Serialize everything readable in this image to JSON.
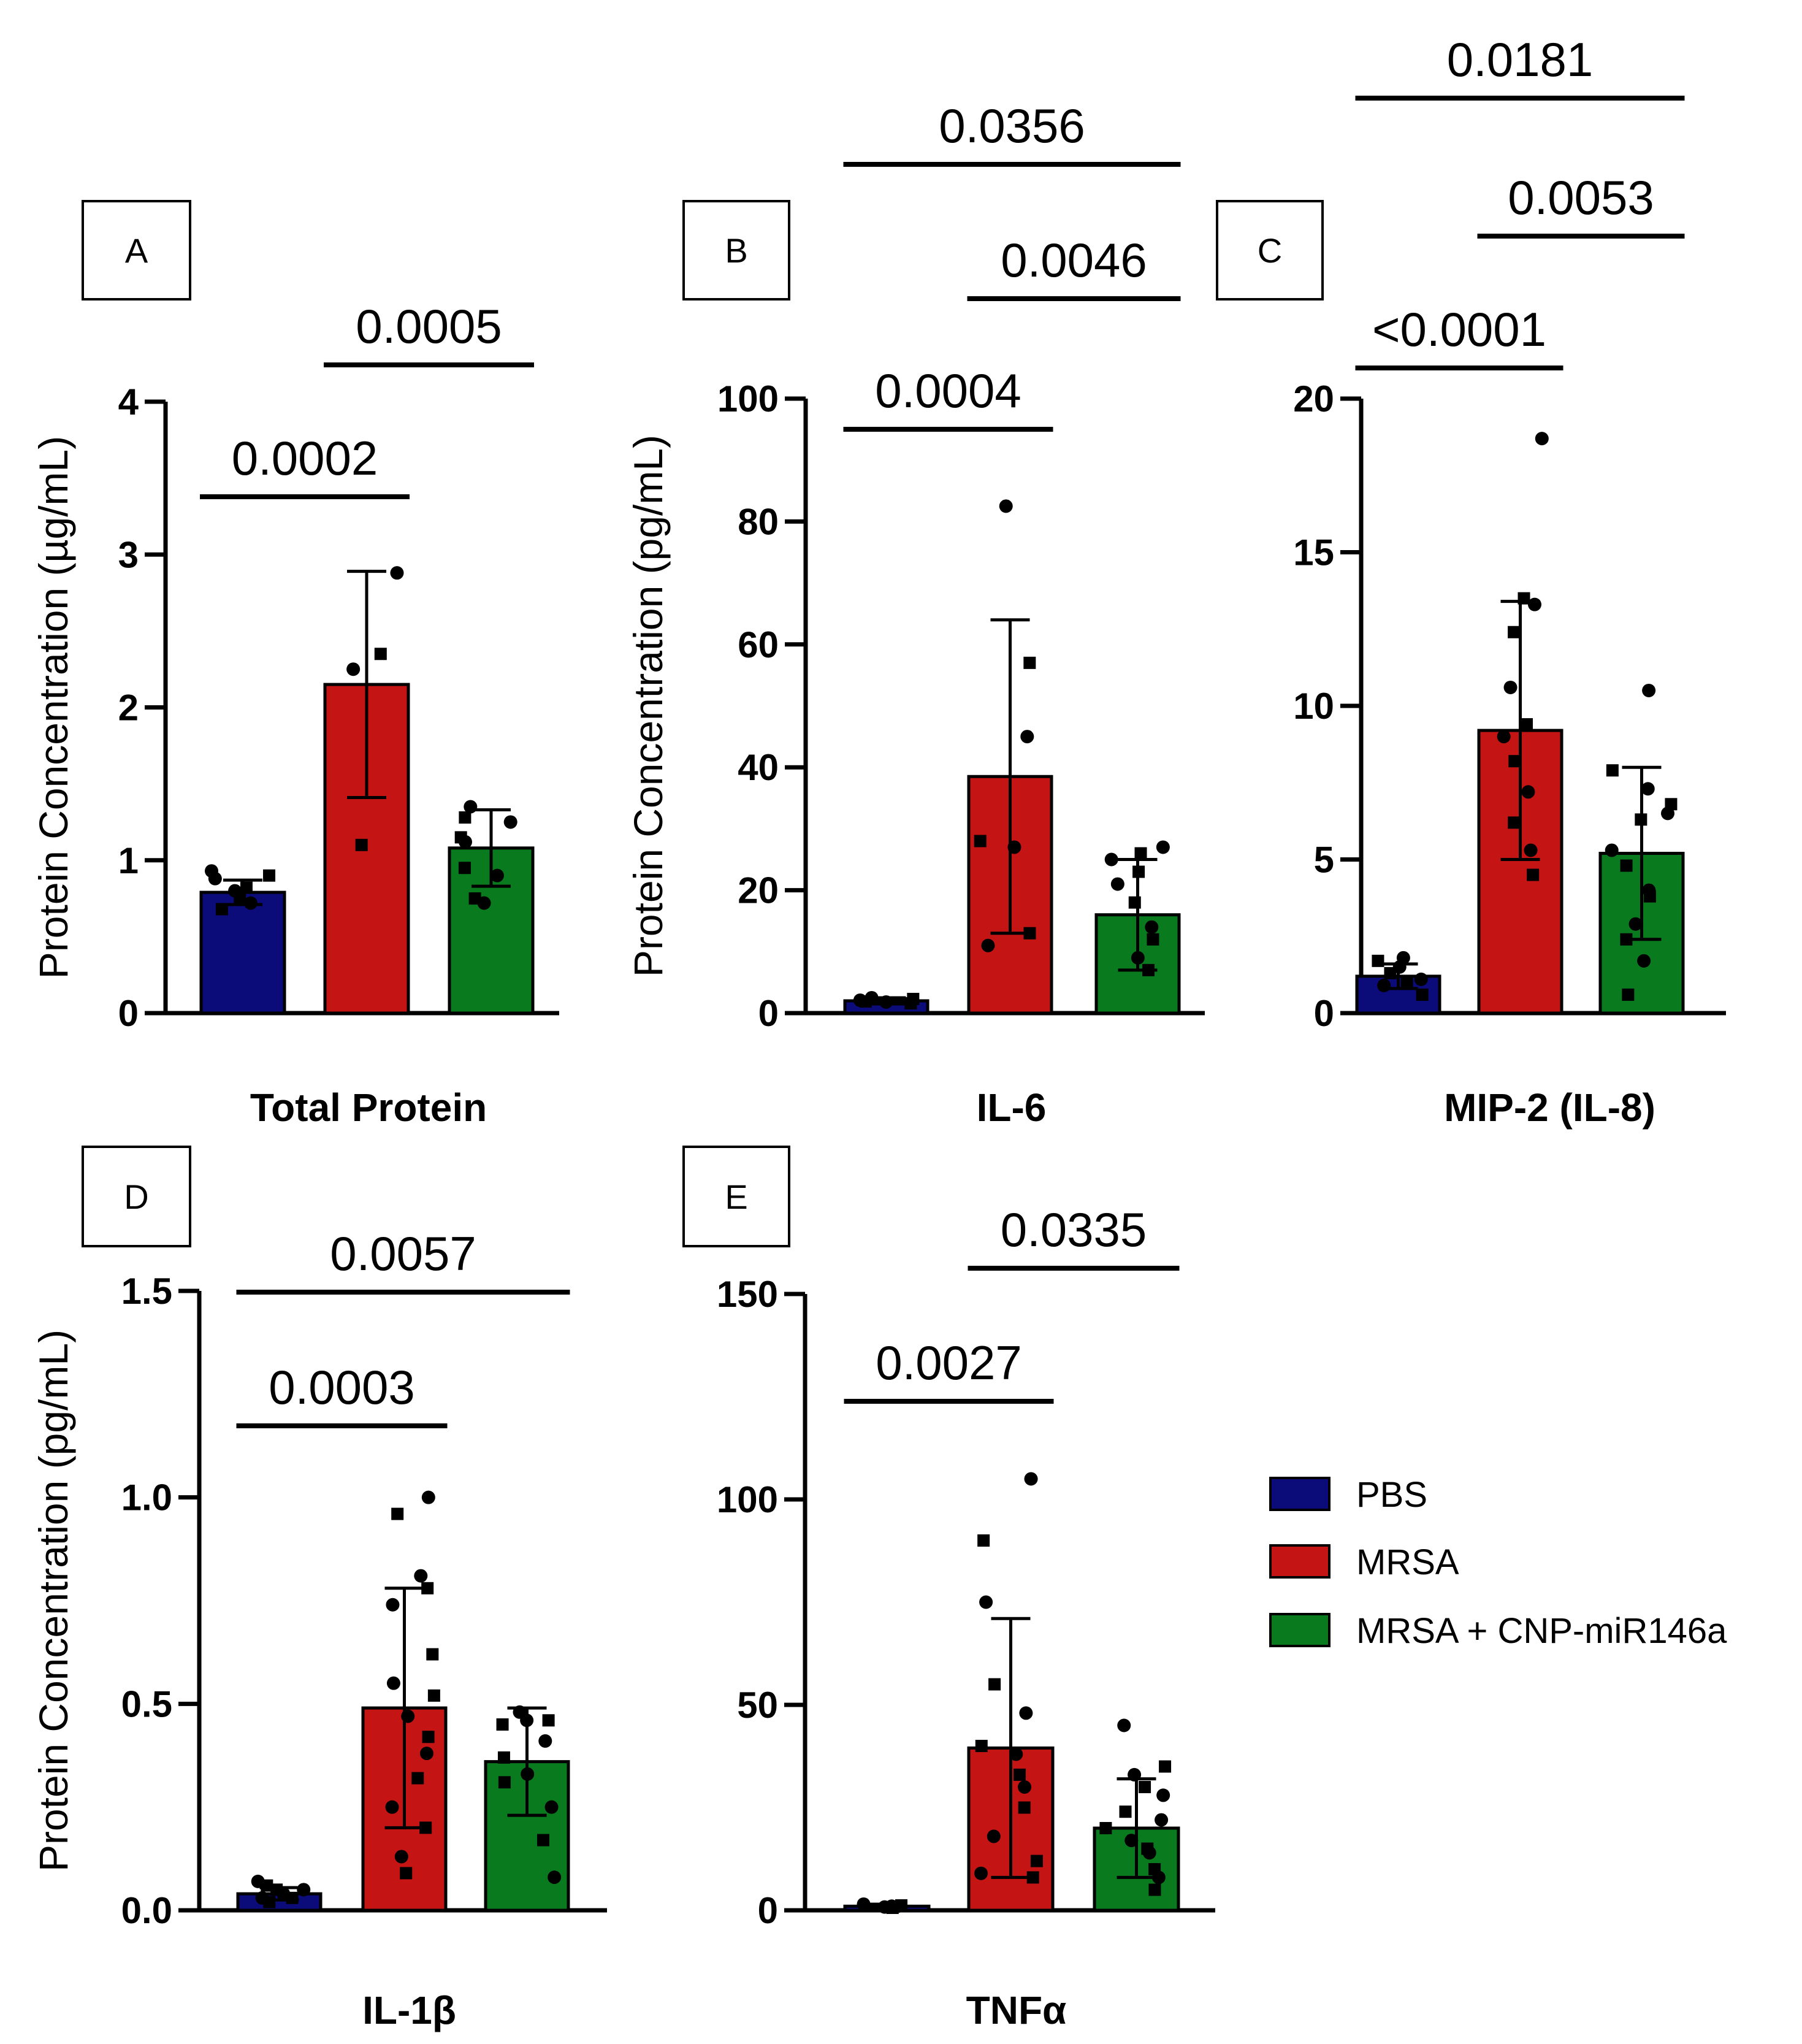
{
  "legend": {
    "items": [
      {
        "label": "PBS",
        "color": "#0b0b7a"
      },
      {
        "label": "MRSA",
        "color": "#c41414"
      },
      {
        "label": "MRSA + CNP-miR146a",
        "color": "#0a7a1e"
      }
    ]
  },
  "chart_data": [
    {
      "type": "bar",
      "panel": "A",
      "title": "Total Protein",
      "ylabel": "Protein Concentration (µg/mL)",
      "ylim": [
        0,
        4
      ],
      "yticks": [
        0,
        1,
        2,
        3,
        4
      ],
      "ytick_labels": [
        "0",
        "1",
        "2",
        "3",
        "4"
      ],
      "categories": [
        "PBS",
        "MRSA",
        "MRSA + CNP-miR146a"
      ],
      "values": [
        0.79,
        2.15,
        1.08
      ],
      "sd": [
        0.08,
        0.74,
        0.25
      ],
      "points": [
        [
          0.93,
          0.9,
          0.88,
          0.82,
          0.8,
          0.75,
          0.72,
          0.68
        ],
        [
          2.88,
          2.35,
          2.25,
          1.1
        ],
        [
          1.35,
          1.28,
          1.25,
          1.15,
          1.12,
          0.95,
          0.9,
          0.75,
          0.72
        ]
      ],
      "comparisons": [
        {
          "from": 0,
          "to": 1,
          "label": "0.0002"
        },
        {
          "from": 1,
          "to": 2,
          "label": "0.0005"
        }
      ]
    },
    {
      "type": "bar",
      "panel": "B",
      "title": "IL-6",
      "ylabel": "Protein Concentration (pg/mL)",
      "ylim": [
        0,
        100
      ],
      "yticks": [
        0,
        20,
        40,
        60,
        80,
        100
      ],
      "ytick_labels": [
        "0",
        "20",
        "40",
        "60",
        "80",
        "100"
      ],
      "categories": [
        "PBS",
        "MRSA",
        "MRSA + CNP-miR146a"
      ],
      "values": [
        2,
        38.5,
        16
      ],
      "sd": [
        0.5,
        25.5,
        9
      ],
      "points": [
        [
          2.5,
          2.3,
          2.1,
          1.9,
          1.8,
          1.6
        ],
        [
          82.5,
          57,
          45,
          28,
          27,
          13,
          11
        ],
        [
          27,
          26,
          25,
          23,
          21,
          18,
          14,
          12,
          9,
          7
        ]
      ],
      "comparisons": [
        {
          "from": 0,
          "to": 1,
          "label": "0.0004"
        },
        {
          "from": 1,
          "to": 2,
          "label": "0.0046"
        },
        {
          "from": 0,
          "to": 2,
          "label": "0.0356"
        }
      ]
    },
    {
      "type": "bar",
      "panel": "C",
      "title": "MIP-2 (IL-8)",
      "ylabel": "",
      "ylim": [
        0,
        20
      ],
      "yticks": [
        0,
        5,
        10,
        15,
        20
      ],
      "ytick_labels": [
        "0",
        "5",
        "10",
        "15",
        "20"
      ],
      "categories": [
        "PBS",
        "MRSA",
        "MRSA + CNP-miR146a"
      ],
      "values": [
        1.2,
        9.2,
        5.2
      ],
      "sd": [
        0.4,
        4.2,
        2.8
      ],
      "points": [
        [
          1.8,
          1.7,
          1.5,
          1.3,
          1.1,
          1.0,
          0.9,
          0.6
        ],
        [
          18.7,
          13.5,
          13.3,
          12.4,
          10.6,
          9.4,
          9.0,
          8.2,
          7.2,
          6.2,
          5.3,
          4.5
        ],
        [
          10.5,
          7.9,
          7.3,
          6.8,
          6.5,
          6.3,
          5.3,
          4.8,
          4.0,
          3.8,
          2.9,
          2.4,
          1.7,
          0.6
        ]
      ],
      "comparisons": [
        {
          "from": 0,
          "to": 1,
          "label": "<0.0001"
        },
        {
          "from": 1,
          "to": 2,
          "label": "0.0053"
        },
        {
          "from": 0,
          "to": 2,
          "label": "0.0181"
        }
      ]
    },
    {
      "type": "bar",
      "panel": "D",
      "title": "IL-1β",
      "ylabel": "Protein Concentration (pg/mL)",
      "ylim": [
        0,
        1.5
      ],
      "yticks": [
        0,
        0.5,
        1.0,
        1.5
      ],
      "ytick_labels": [
        "0.0",
        "0.5",
        "1.0",
        "1.5"
      ],
      "categories": [
        "PBS",
        "MRSA",
        "MRSA + CNP-miR146a"
      ],
      "values": [
        0.04,
        0.49,
        0.36
      ],
      "sd": [
        0.015,
        0.29,
        0.13
      ],
      "points": [
        [
          0.07,
          0.06,
          0.05,
          0.05,
          0.04,
          0.03,
          0.03,
          0.02
        ],
        [
          1.0,
          0.96,
          0.81,
          0.78,
          0.74,
          0.62,
          0.55,
          0.52,
          0.47,
          0.42,
          0.38,
          0.32,
          0.25,
          0.2,
          0.13,
          0.09
        ],
        [
          0.48,
          0.46,
          0.46,
          0.45,
          0.41,
          0.37,
          0.33,
          0.31,
          0.25,
          0.17,
          0.08
        ]
      ],
      "comparisons": [
        {
          "from": 0,
          "to": 1,
          "label": "0.0003"
        },
        {
          "from": 0,
          "to": 2,
          "label": "0.0057"
        }
      ]
    },
    {
      "type": "bar",
      "panel": "E",
      "title": "TNFα",
      "ylabel": "",
      "ylim": [
        0,
        150
      ],
      "yticks": [
        0,
        50,
        100,
        150
      ],
      "ytick_labels": [
        "0",
        "50",
        "100",
        "150"
      ],
      "categories": [
        "PBS",
        "MRSA",
        "MRSA + CNP-miR146a"
      ],
      "values": [
        1,
        39.5,
        20
      ],
      "sd": [
        0.5,
        31.5,
        12
      ],
      "points": [
        [
          1.5,
          1.2,
          1.0,
          0.9,
          0.8,
          0.6
        ],
        [
          105,
          90,
          75,
          55,
          48,
          40,
          38,
          33,
          30,
          25,
          18,
          12,
          9,
          8
        ],
        [
          45,
          35,
          33,
          30,
          28,
          24,
          22,
          20,
          17,
          15,
          14,
          10,
          8,
          5
        ]
      ],
      "comparisons": [
        {
          "from": 0,
          "to": 1,
          "label": "0.0027"
        },
        {
          "from": 1,
          "to": 2,
          "label": "0.0335"
        }
      ]
    }
  ]
}
